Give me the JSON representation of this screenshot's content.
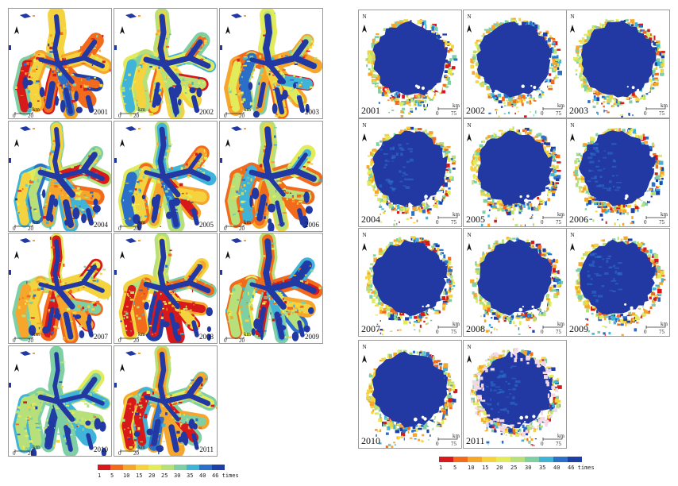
{
  "colors": {
    "scale": [
      "#d7191c",
      "#f26b1d",
      "#f7a62c",
      "#f5d33f",
      "#e2ec5a",
      "#b7df7a",
      "#7fcfa4",
      "#40b4d8",
      "#2b6fc9",
      "#1f3fa8"
    ],
    "water": "#2238a3"
  },
  "left_figure": {
    "panels": [
      {
        "year": "2001",
        "scale_unit": "km",
        "scale_start": "0",
        "scale_end": "20"
      },
      {
        "year": "2002",
        "scale_unit": "km",
        "scale_start": "0",
        "scale_end": "20"
      },
      {
        "year": "2003",
        "scale_unit": "km",
        "scale_start": "0",
        "scale_end": "20"
      },
      {
        "year": "2004",
        "scale_unit": "km",
        "scale_start": "0",
        "scale_end": "20"
      },
      {
        "year": "2005",
        "scale_unit": "km",
        "scale_start": "0",
        "scale_end": "20"
      },
      {
        "year": "2006",
        "scale_unit": "km",
        "scale_start": "0",
        "scale_end": "20"
      },
      {
        "year": "2007",
        "scale_unit": "km",
        "scale_start": "0",
        "scale_end": "20"
      },
      {
        "year": "2008",
        "scale_unit": "km",
        "scale_start": "0",
        "scale_end": "20"
      },
      {
        "year": "2009",
        "scale_unit": "km",
        "scale_start": "0",
        "scale_end": "20"
      },
      {
        "year": "2010",
        "scale_unit": "km",
        "scale_start": "0",
        "scale_end": "20"
      },
      {
        "year": "2011",
        "scale_unit": "km",
        "scale_start": "0",
        "scale_end": "20"
      }
    ],
    "legend_labels": [
      "1",
      "5",
      "10",
      "15",
      "20",
      "25",
      "30",
      "35",
      "40",
      "46 times"
    ]
  },
  "right_figure": {
    "panels": [
      {
        "year": "2001",
        "north": "N",
        "scale_unit": "km",
        "scale_start": "0",
        "scale_end": "75"
      },
      {
        "year": "2002",
        "north": "N",
        "scale_unit": "km",
        "scale_start": "0",
        "scale_end": "75"
      },
      {
        "year": "2003",
        "north": "N",
        "scale_unit": "km",
        "scale_start": "0",
        "scale_end": "75"
      },
      {
        "year": "2004",
        "north": "N",
        "scale_unit": "km",
        "scale_start": "0",
        "scale_end": "75"
      },
      {
        "year": "2005",
        "north": "N",
        "scale_unit": "km",
        "scale_start": "0",
        "scale_end": "75"
      },
      {
        "year": "2006",
        "north": "N",
        "scale_unit": "km",
        "scale_start": "0",
        "scale_end": "75"
      },
      {
        "year": "2007",
        "north": "N",
        "scale_unit": "km",
        "scale_start": "0",
        "scale_end": "75"
      },
      {
        "year": "2008",
        "north": "N",
        "scale_unit": "km",
        "scale_start": "0",
        "scale_end": "75"
      },
      {
        "year": "2009",
        "north": "N",
        "scale_unit": "km",
        "scale_start": "0",
        "scale_end": "75"
      },
      {
        "year": "2010",
        "north": "N",
        "scale_unit": "km",
        "scale_start": "0",
        "scale_end": "75"
      },
      {
        "year": "2011",
        "north": "N",
        "scale_unit": "km",
        "scale_start": "0",
        "scale_end": "75"
      }
    ],
    "legend_labels": [
      "1",
      "5",
      "10",
      "15",
      "20",
      "25",
      "30",
      "35",
      "40",
      "46 times"
    ]
  }
}
